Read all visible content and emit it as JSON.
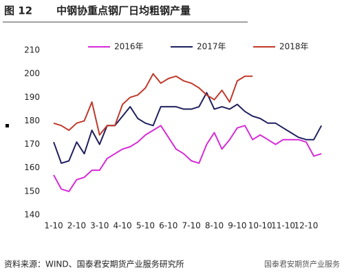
{
  "chart_data": {
    "type": "line",
    "figure_label": "图 12",
    "title": "中钢协重点钢厂日均粗钢产量",
    "source": "资料来源：WIND、国泰君安期货产业服务研究所",
    "watermark": "国泰君安期货产业服务",
    "categories": [
      "1-10",
      null,
      null,
      "2-10",
      null,
      null,
      "3-10",
      null,
      null,
      "4-10",
      null,
      null,
      "5-10",
      null,
      null,
      "6-10",
      null,
      null,
      "7-10",
      null,
      null,
      "8-10",
      null,
      null,
      "9-10",
      null,
      null,
      "10-10",
      null,
      null,
      "11-10",
      null,
      null,
      "12-10",
      null,
      null
    ],
    "series": [
      {
        "name": "2016年",
        "color": "#d62ad6",
        "values": [
          157,
          151,
          150,
          155,
          156,
          159,
          159,
          164,
          166,
          168,
          169,
          171,
          174,
          176,
          178,
          173,
          168,
          166,
          163,
          162,
          170,
          175,
          168,
          172,
          177,
          178,
          172,
          174,
          172,
          170,
          172,
          172,
          172,
          171,
          165,
          166
        ]
      },
      {
        "name": "2017年",
        "color": "#1f1f5e",
        "values": [
          171,
          162,
          163,
          171,
          166,
          176,
          170,
          178,
          178,
          182,
          186,
          181,
          179,
          178,
          186,
          186,
          186,
          185,
          185,
          186,
          192,
          185,
          186,
          185,
          187,
          184,
          182,
          181,
          179,
          179,
          177,
          175,
          173,
          172,
          172,
          178
        ]
      },
      {
        "name": "2018年",
        "color": "#c0392b",
        "values": [
          179,
          178,
          176,
          179,
          180,
          188,
          174,
          178,
          178,
          187,
          190,
          191,
          194,
          200,
          196,
          198,
          199,
          197,
          196,
          194,
          191,
          189,
          193,
          188,
          197,
          199,
          199,
          null,
          null,
          null,
          null,
          null,
          null,
          null,
          null,
          null
        ]
      }
    ],
    "ylim": [
      140,
      210
    ],
    "yticks": [
      140,
      150,
      160,
      170,
      180,
      190,
      200,
      210
    ],
    "legend": "top",
    "grid": false
  }
}
